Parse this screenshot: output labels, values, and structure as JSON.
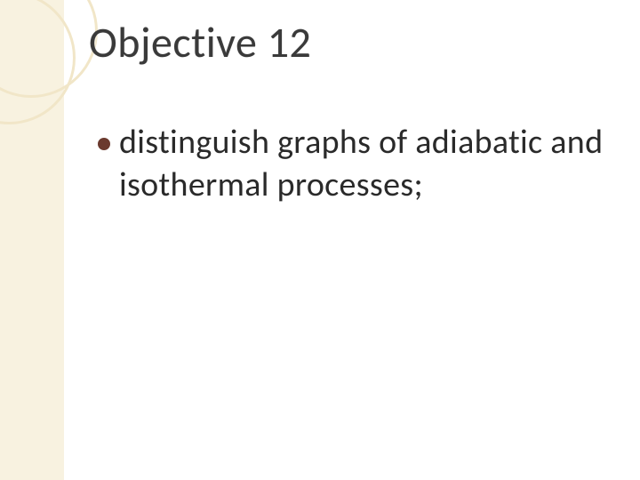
{
  "slide": {
    "title": "Objective 12",
    "bullets": [
      {
        "text": "distinguish graphs of adiabatic and isothermal processes;"
      }
    ]
  },
  "theme": {
    "background": "#ffffff",
    "strip_color": "#f8f2e0",
    "circle_border": "#f1e6c8",
    "bullet_color": "#6b3a2e",
    "title_color": "#3a3a3a",
    "body_color": "#2a2a2a",
    "title_fontsize": 48,
    "body_fontsize": 38
  }
}
